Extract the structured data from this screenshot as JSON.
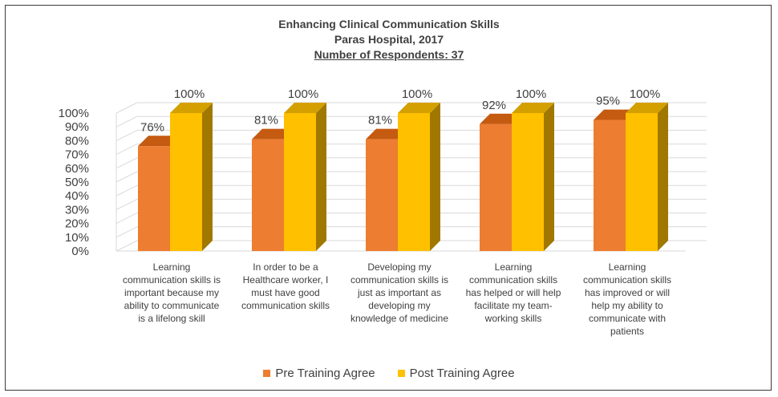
{
  "chart_data": {
    "type": "bar",
    "title": "Enhancing Clinical Communication Skills",
    "subtitle": "Paras Hospital,  2017",
    "respondents": "Number of Respondents: 37",
    "categories": [
      "Learning communication skills is important because my ability to communicate is a lifelong skill",
      "In order to be a Healthcare worker, I must have good communication skills",
      "Developing my communication skills is just as important as developing my knowledge of medicine",
      "Learning communication skills has helped or will help facilitate my team-working skills",
      "Learning communication skills has improved or will help my ability to communicate with patients"
    ],
    "category_lines": [
      [
        "Learning",
        "communication skills is",
        "important because my",
        "ability to communicate",
        "is a lifelong skill"
      ],
      [
        "In order to be a",
        "Healthcare worker, I",
        "must have good",
        "communication skills"
      ],
      [
        "Developing my",
        "communication skills is",
        "just as important as",
        "developing my",
        "knowledge of medicine"
      ],
      [
        "Learning",
        "communication skills",
        "has helped or will help",
        "facilitate my team-",
        "working skills"
      ],
      [
        "Learning",
        "communication skills",
        "has improved or will",
        "help my ability to",
        "communicate with",
        "patients"
      ]
    ],
    "series": [
      {
        "name": "Pre Training Agree",
        "values": [
          76,
          81,
          81,
          92,
          95
        ],
        "labels": [
          "76%",
          "81%",
          "81%",
          "92%",
          "95%"
        ],
        "color": "#ED7D31"
      },
      {
        "name": "Post Training Agree",
        "values": [
          100,
          100,
          100,
          100,
          100
        ],
        "labels": [
          "100%",
          "100%",
          "100%",
          "100%",
          "100%"
        ],
        "color": "#FFC000"
      }
    ],
    "y_ticks": [
      "0%",
      "10%",
      "20%",
      "30%",
      "40%",
      "50%",
      "60%",
      "70%",
      "80%",
      "90%",
      "100%"
    ],
    "ylim": [
      0,
      100
    ],
    "grid": true,
    "legend": "bottom",
    "style": "3d-clustered-column"
  }
}
